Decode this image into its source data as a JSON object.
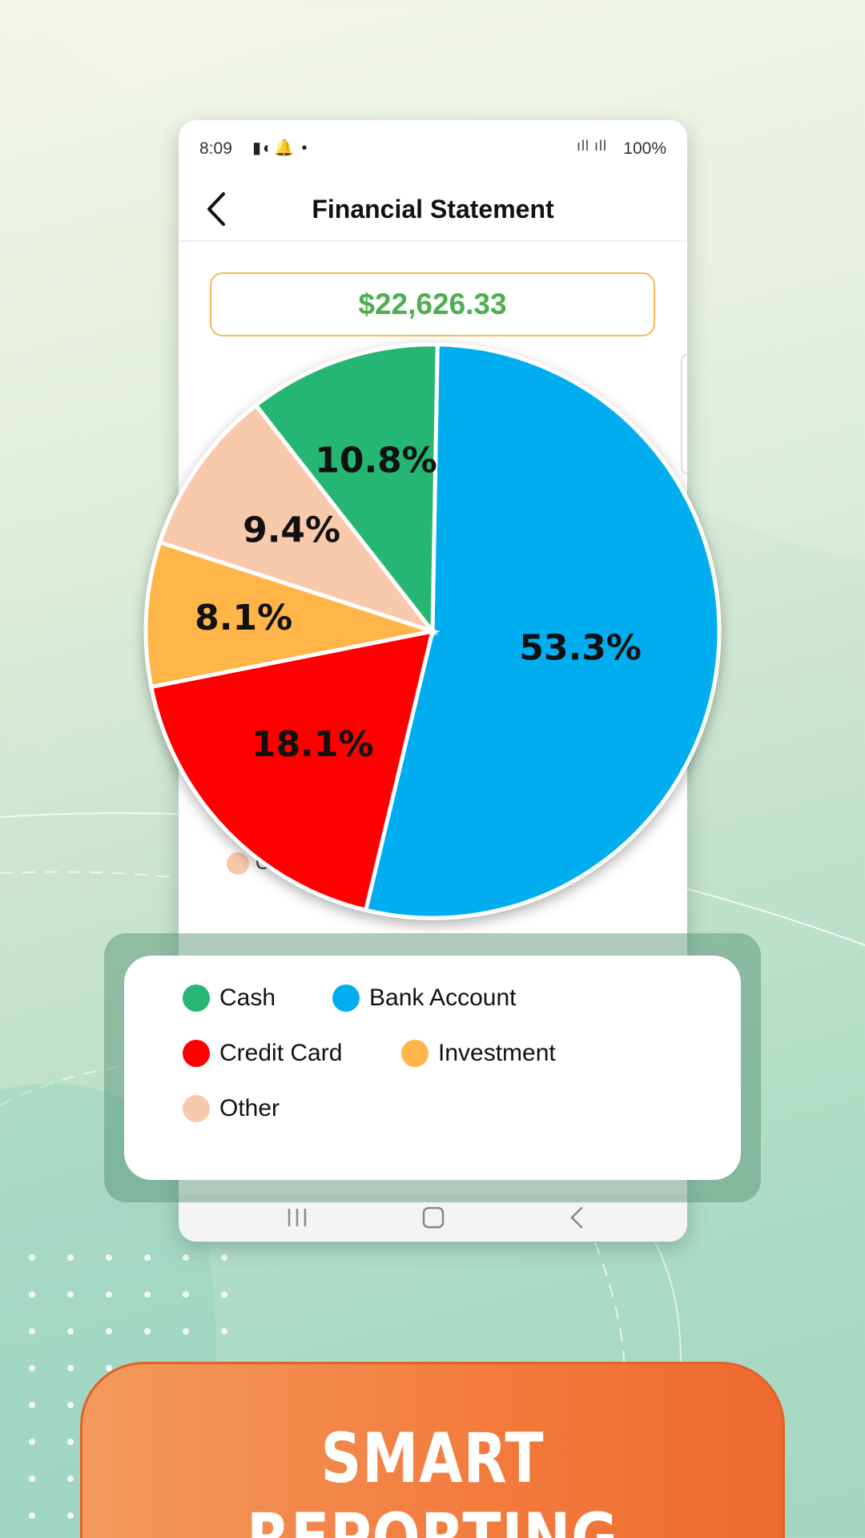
{
  "status_bar": {
    "time": "8:09",
    "notification_icons": "notification-icons",
    "signal": "VoLTE signal",
    "battery": "100%"
  },
  "header": {
    "title": "Financial Statement",
    "back_icon": "chevron-left-icon"
  },
  "total": "$22,626.33",
  "legend_peek_text": "Ot",
  "chart_data": {
    "type": "pie",
    "slices": [
      {
        "label": "Bank Account",
        "value": 53.3,
        "display": "53.3%",
        "color": "#03aef0"
      },
      {
        "label": "Credit Card",
        "value": 18.1,
        "display": "18.1%",
        "color": "#ff0000"
      },
      {
        "label": "Investment",
        "value": 8.1,
        "display": "8.1%",
        "color": "#ffb547"
      },
      {
        "label": "Other",
        "value": 9.4,
        "display": "9.4%",
        "color": "#f8c9ab"
      },
      {
        "label": "Cash",
        "value": 10.8,
        "display": "10.8%",
        "color": "#27b673"
      }
    ]
  },
  "legend": {
    "items": [
      {
        "label": "Cash",
        "color": "#27b673"
      },
      {
        "label": "Bank Account",
        "color": "#03aef0"
      },
      {
        "label": "Credit Card",
        "color": "#ff0000"
      },
      {
        "label": "Investment",
        "color": "#ffb547"
      },
      {
        "label": "Other",
        "color": "#f8c9ab"
      }
    ]
  },
  "nav_bar": {
    "recent_icon": "recent-apps-icon",
    "home_icon": "home-icon",
    "back_icon": "back-icon"
  },
  "banner": {
    "text": "SMART REPORTING"
  },
  "colors": {
    "accent_green": "#4caf50",
    "box_border": "#f5b85a",
    "banner_orange": "#f27a3c"
  }
}
